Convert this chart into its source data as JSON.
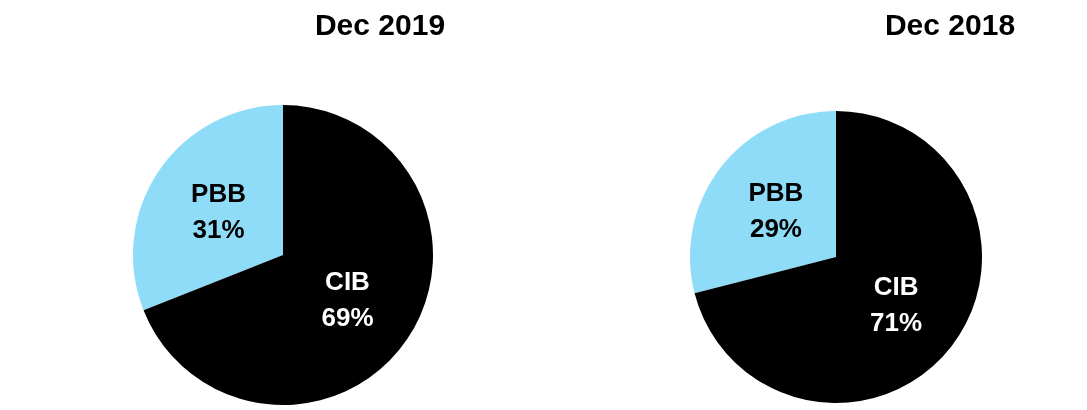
{
  "chart_data": [
    {
      "type": "pie",
      "title": "Dec 2019",
      "categories": [
        "PBB",
        "CIB"
      ],
      "values": [
        31,
        69
      ],
      "value_labels": [
        "31%",
        "69%"
      ],
      "colors": [
        "#8fdcf8",
        "#000000"
      ]
    },
    {
      "type": "pie",
      "title": "Dec 2018",
      "categories": [
        "PBB",
        "CIB"
      ],
      "values": [
        29,
        71
      ],
      "value_labels": [
        "29%",
        "71%"
      ],
      "colors": [
        "#8fdcf8",
        "#000000"
      ]
    }
  ]
}
